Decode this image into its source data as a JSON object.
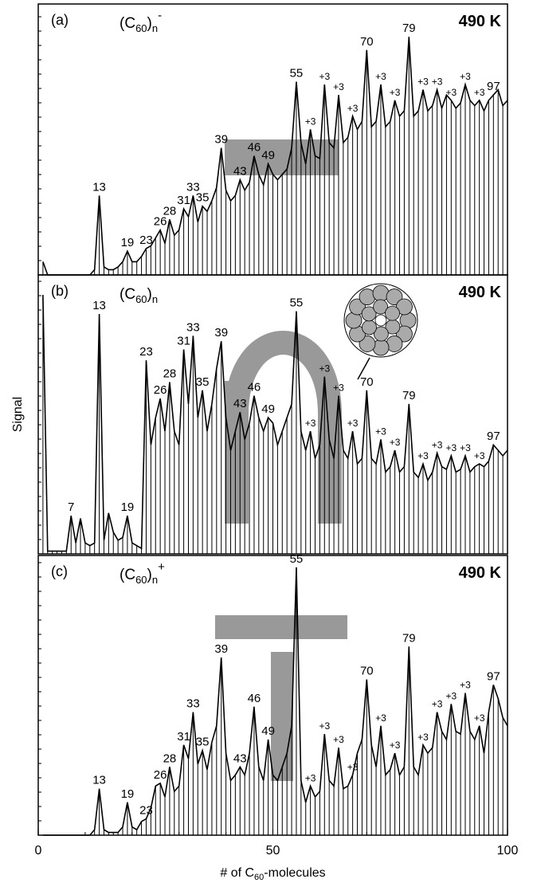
{
  "chart_data": [
    {
      "type": "spectrum",
      "panel": "(a)",
      "formula": {
        "base": "(C",
        "sub": "60",
        "close": ")",
        "n": "n",
        "charge": "-"
      },
      "temperature": "490 K",
      "xlim": [
        0,
        100
      ],
      "ylim": [
        0,
        100
      ],
      "x": [
        1,
        2,
        3,
        4,
        5,
        6,
        7,
        8,
        9,
        10,
        11,
        12,
        13,
        14,
        15,
        16,
        17,
        18,
        19,
        20,
        21,
        22,
        23,
        24,
        25,
        26,
        27,
        28,
        29,
        30,
        31,
        32,
        33,
        34,
        35,
        36,
        37,
        38,
        39,
        40,
        41,
        42,
        43,
        44,
        45,
        46,
        47,
        48,
        49,
        50,
        51,
        52,
        53,
        54,
        55,
        56,
        57,
        58,
        59,
        60,
        61,
        62,
        63,
        64,
        65,
        66,
        67,
        68,
        69,
        70,
        71,
        72,
        73,
        74,
        75,
        76,
        77,
        78,
        79,
        80,
        81,
        82,
        83,
        84,
        85,
        86,
        87,
        88,
        89,
        90,
        91,
        92,
        93,
        94,
        95,
        96,
        97,
        98,
        99,
        100
      ],
      "values": [
        5,
        0,
        0,
        0,
        0,
        0,
        0,
        0,
        0,
        0,
        0,
        2,
        30,
        3,
        2,
        2,
        3,
        5,
        9,
        5,
        5,
        7,
        10,
        11,
        14,
        17,
        12,
        21,
        15,
        17,
        25,
        22,
        30,
        20,
        26,
        24,
        28,
        33,
        48,
        32,
        28,
        30,
        36,
        32,
        35,
        45,
        38,
        34,
        42,
        38,
        36,
        38,
        40,
        48,
        73,
        50,
        42,
        55,
        45,
        44,
        72,
        50,
        48,
        68,
        50,
        52,
        60,
        55,
        58,
        85,
        56,
        58,
        72,
        56,
        58,
        66,
        60,
        62,
        90,
        60,
        62,
        70,
        62,
        64,
        70,
        63,
        68,
        66,
        63,
        65,
        72,
        66,
        64,
        66,
        62,
        66,
        68,
        70,
        64,
        66
      ],
      "annotations": [
        {
          "text": "13",
          "x": 13
        },
        {
          "text": "19",
          "x": 19
        },
        {
          "text": "23",
          "x": 23
        },
        {
          "text": "26",
          "x": 26
        },
        {
          "text": "28",
          "x": 28
        },
        {
          "text": "31",
          "x": 31
        },
        {
          "text": "33",
          "x": 33
        },
        {
          "text": "35",
          "x": 35
        },
        {
          "text": "39",
          "x": 39
        },
        {
          "text": "43",
          "x": 43
        },
        {
          "text": "46",
          "x": 46
        },
        {
          "text": "49",
          "x": 49
        },
        {
          "text": "55",
          "x": 55
        },
        {
          "text": "+3",
          "x": 58
        },
        {
          "text": "+3",
          "x": 61
        },
        {
          "text": "+3",
          "x": 64
        },
        {
          "text": "+3",
          "x": 67
        },
        {
          "text": "70",
          "x": 70
        },
        {
          "text": "+3",
          "x": 73
        },
        {
          "text": "+3",
          "x": 76
        },
        {
          "text": "79",
          "x": 79
        },
        {
          "text": "+3",
          "x": 82
        },
        {
          "text": "+3",
          "x": 85
        },
        {
          "text": "+3",
          "x": 88
        },
        {
          "text": "+3",
          "x": 91
        },
        {
          "text": "+3",
          "x": 94
        },
        {
          "text": "97",
          "x": 97
        }
      ]
    },
    {
      "type": "spectrum",
      "panel": "(b)",
      "formula": {
        "base": "(C",
        "sub": "60",
        "close": ")",
        "n": "n"
      },
      "temperature": "490 K",
      "y_label": "Signal",
      "xlim": [
        0,
        100
      ],
      "ylim": [
        0,
        100
      ],
      "x": [
        1,
        2,
        3,
        4,
        5,
        6,
        7,
        8,
        9,
        10,
        11,
        12,
        13,
        14,
        15,
        16,
        17,
        18,
        19,
        20,
        21,
        22,
        23,
        24,
        25,
        26,
        27,
        28,
        29,
        30,
        31,
        32,
        33,
        34,
        35,
        36,
        37,
        38,
        39,
        40,
        41,
        42,
        43,
        44,
        45,
        46,
        47,
        48,
        49,
        50,
        51,
        52,
        53,
        54,
        55,
        56,
        57,
        58,
        59,
        60,
        61,
        62,
        63,
        64,
        65,
        66,
        67,
        68,
        69,
        70,
        71,
        72,
        73,
        74,
        75,
        76,
        77,
        78,
        79,
        80,
        81,
        82,
        83,
        84,
        85,
        86,
        87,
        88,
        89,
        90,
        91,
        92,
        93,
        94,
        95,
        96,
        97,
        98,
        99,
        100
      ],
      "values": [
        95,
        1,
        1,
        1,
        1,
        1,
        14,
        4,
        13,
        4,
        3,
        4,
        88,
        5,
        15,
        8,
        5,
        6,
        14,
        4,
        3,
        2,
        71,
        40,
        50,
        57,
        45,
        63,
        45,
        40,
        75,
        55,
        80,
        50,
        60,
        45,
        55,
        68,
        78,
        50,
        38,
        45,
        52,
        42,
        48,
        58,
        50,
        45,
        50,
        48,
        40,
        45,
        50,
        55,
        89,
        45,
        38,
        45,
        35,
        40,
        65,
        42,
        35,
        58,
        38,
        35,
        45,
        33,
        35,
        60,
        35,
        33,
        42,
        30,
        32,
        38,
        30,
        32,
        55,
        30,
        28,
        33,
        27,
        30,
        37,
        32,
        31,
        36,
        30,
        31,
        36,
        30,
        32,
        33,
        32,
        34,
        40,
        38,
        36,
        38
      ],
      "annotations": [
        {
          "text": "7",
          "x": 7
        },
        {
          "text": "13",
          "x": 13
        },
        {
          "text": "19",
          "x": 19
        },
        {
          "text": "23",
          "x": 23
        },
        {
          "text": "26",
          "x": 26
        },
        {
          "text": "28",
          "x": 28
        },
        {
          "text": "31",
          "x": 31
        },
        {
          "text": "33",
          "x": 33
        },
        {
          "text": "35",
          "x": 35
        },
        {
          "text": "39",
          "x": 39
        },
        {
          "text": "43",
          "x": 43
        },
        {
          "text": "46",
          "x": 46
        },
        {
          "text": "49",
          "x": 49
        },
        {
          "text": "55",
          "x": 55
        },
        {
          "text": "+3",
          "x": 58
        },
        {
          "text": "+3",
          "x": 61
        },
        {
          "text": "+3",
          "x": 64
        },
        {
          "text": "+3",
          "x": 67
        },
        {
          "text": "70",
          "x": 70
        },
        {
          "text": "+3",
          "x": 73
        },
        {
          "text": "+3",
          "x": 76
        },
        {
          "text": "79",
          "x": 79
        },
        {
          "text": "+3",
          "x": 82
        },
        {
          "text": "+3",
          "x": 85
        },
        {
          "text": "+3",
          "x": 88
        },
        {
          "text": "+3",
          "x": 91
        },
        {
          "text": "+3",
          "x": 94
        },
        {
          "text": "97",
          "x": 97
        }
      ]
    },
    {
      "type": "spectrum",
      "panel": "(c)",
      "formula": {
        "base": "(C",
        "sub": "60",
        "close": ")",
        "n": "n",
        "charge": "+"
      },
      "temperature": "490 K",
      "x_label": {
        "pre": "# of C",
        "sub": "60",
        "post": "-molecules"
      },
      "xlim": [
        0,
        100
      ],
      "xticks": [
        0,
        50,
        100
      ],
      "ylim": [
        0,
        100
      ],
      "x": [
        1,
        2,
        3,
        4,
        5,
        6,
        7,
        8,
        9,
        10,
        11,
        12,
        13,
        14,
        15,
        16,
        17,
        18,
        19,
        20,
        21,
        22,
        23,
        24,
        25,
        26,
        27,
        28,
        29,
        30,
        31,
        32,
        33,
        34,
        35,
        36,
        37,
        38,
        39,
        40,
        41,
        42,
        43,
        44,
        45,
        46,
        47,
        48,
        49,
        50,
        51,
        52,
        53,
        54,
        55,
        56,
        57,
        58,
        59,
        60,
        61,
        62,
        63,
        64,
        65,
        66,
        67,
        68,
        69,
        70,
        71,
        72,
        73,
        74,
        75,
        76,
        77,
        78,
        79,
        80,
        81,
        82,
        83,
        84,
        85,
        86,
        87,
        88,
        89,
        90,
        91,
        92,
        93,
        94,
        95,
        96,
        97,
        98,
        99,
        100
      ],
      "values": [
        0,
        0,
        0,
        0,
        0,
        0,
        0,
        0,
        0,
        0,
        0,
        2,
        17,
        2,
        1,
        1,
        1,
        3,
        12,
        3,
        2,
        5,
        6,
        10,
        18,
        19,
        14,
        25,
        16,
        18,
        33,
        28,
        45,
        26,
        31,
        24,
        34,
        40,
        65,
        30,
        20,
        22,
        25,
        22,
        30,
        47,
        25,
        20,
        35,
        22,
        20,
        25,
        30,
        40,
        98,
        20,
        12,
        18,
        14,
        16,
        37,
        20,
        18,
        32,
        17,
        18,
        22,
        30,
        35,
        57,
        33,
        25,
        40,
        22,
        24,
        30,
        22,
        25,
        69,
        25,
        22,
        33,
        30,
        32,
        45,
        38,
        35,
        48,
        38,
        37,
        52,
        38,
        35,
        40,
        30,
        45,
        55,
        50,
        43,
        40
      ],
      "annotations": [
        {
          "text": "13",
          "x": 13
        },
        {
          "text": "19",
          "x": 19
        },
        {
          "text": "23",
          "x": 23
        },
        {
          "text": "26",
          "x": 26
        },
        {
          "text": "28",
          "x": 28
        },
        {
          "text": "31",
          "x": 31
        },
        {
          "text": "33",
          "x": 33
        },
        {
          "text": "35",
          "x": 35
        },
        {
          "text": "39",
          "x": 39
        },
        {
          "text": "43",
          "x": 43
        },
        {
          "text": "46",
          "x": 46
        },
        {
          "text": "49",
          "x": 49
        },
        {
          "text": "55",
          "x": 55
        },
        {
          "text": "+3",
          "x": 58
        },
        {
          "text": "+3",
          "x": 61
        },
        {
          "text": "+3",
          "x": 64
        },
        {
          "text": "+3",
          "x": 67
        },
        {
          "text": "70",
          "x": 70
        },
        {
          "text": "+3",
          "x": 73
        },
        {
          "text": "+3",
          "x": 76
        },
        {
          "text": "79",
          "x": 79
        },
        {
          "text": "+3",
          "x": 82
        },
        {
          "text": "+3",
          "x": 85
        },
        {
          "text": "+3",
          "x": 88
        },
        {
          "text": "+3",
          "x": 91
        },
        {
          "text": "+3",
          "x": 94
        },
        {
          "text": "97",
          "x": 97
        }
      ]
    }
  ]
}
